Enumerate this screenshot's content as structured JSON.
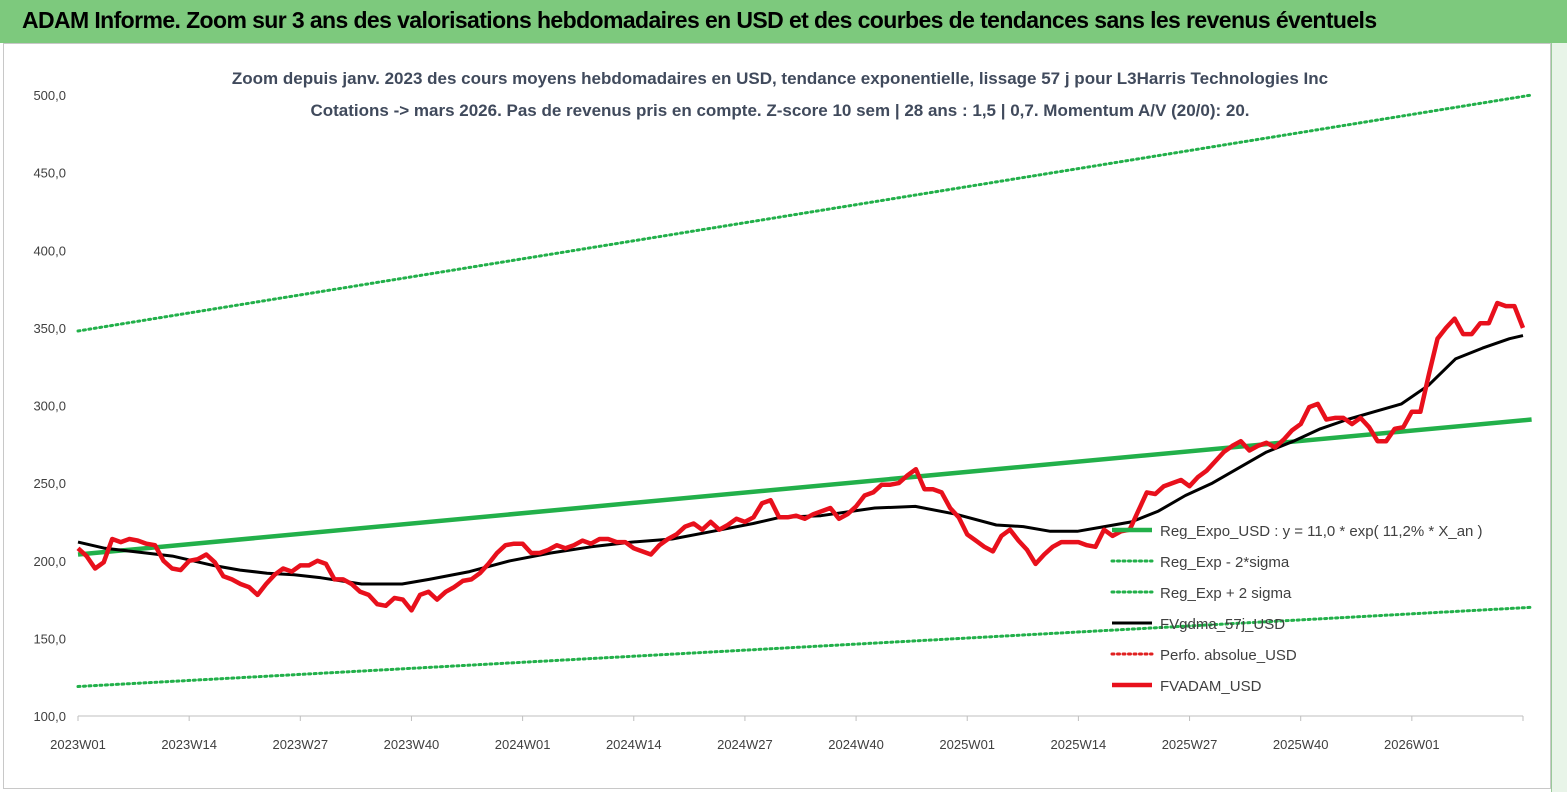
{
  "banner": {
    "title": "ADAM Informe. Zoom sur 3 ans des valorisations hebdomadaires en USD et des courbes de tendances sans les revenus éventuels",
    "color": "#7dc97d"
  },
  "chart_data": {
    "type": "line",
    "title": "Zoom depuis janv. 2023 des cours moyens hebdomadaires en USD, tendance exponentielle, lissage 57 j pour L3Harris Technologies Inc",
    "subtitle": "Cotations -> mars 2026. Pas de revenus pris en compte. Z-score 10 sem | 28 ans : 1,5 | 0,7. Momentum A/V (20/0): 20.",
    "xlabel": "",
    "ylabel": "",
    "ylim": [
      100,
      500
    ],
    "y_ticks": [
      "100,0",
      "150,0",
      "200,0",
      "250,0",
      "300,0",
      "350,0",
      "400,0",
      "450,0",
      "500,0"
    ],
    "x_ticks": [
      "2023W01",
      "2023W14",
      "2023W27",
      "2023W40",
      "2024W01",
      "2024W14",
      "2024W27",
      "2024W40",
      "2025W01",
      "2025W14",
      "2025W27",
      "2025W40",
      "2026W01"
    ],
    "x_weeks_total": 170,
    "legend_position": "bottom-right",
    "grid": false,
    "series": [
      {
        "name": "Reg_Expo_USD : y = 11,0 * exp( 11,2% * X_an )",
        "color": "#22b04a",
        "style": "solid-thick",
        "values": [
          [
            0,
            204
          ],
          [
            170,
            291
          ]
        ]
      },
      {
        "name": "Reg_Exp - 2*sigma",
        "color": "#22b04a",
        "style": "dotted",
        "values": [
          [
            0,
            119
          ],
          [
            170,
            170
          ]
        ]
      },
      {
        "name": "Reg_Exp + 2 sigma",
        "color": "#22b04a",
        "style": "dotted",
        "values": [
          [
            0,
            348
          ],
          [
            170,
            500
          ]
        ]
      },
      {
        "name": "FVgdma_57j_USD",
        "color": "#000000",
        "style": "solid",
        "values": [
          [
            0,
            212
          ],
          [
            4,
            208
          ],
          [
            8,
            206
          ],
          [
            14,
            203
          ],
          [
            20,
            197
          ],
          [
            24,
            194
          ],
          [
            28,
            192
          ],
          [
            32,
            191
          ],
          [
            36,
            189
          ],
          [
            42,
            185
          ],
          [
            48,
            185
          ],
          [
            52,
            188
          ],
          [
            58,
            193
          ],
          [
            64,
            200
          ],
          [
            70,
            205
          ],
          [
            76,
            209
          ],
          [
            82,
            212
          ],
          [
            88,
            214
          ],
          [
            94,
            219
          ],
          [
            100,
            224
          ],
          [
            104,
            228
          ],
          [
            110,
            229
          ],
          [
            118,
            234
          ],
          [
            124,
            235
          ],
          [
            130,
            230
          ],
          [
            136,
            223
          ],
          [
            140,
            222
          ],
          [
            144,
            219
          ],
          [
            148,
            219
          ],
          [
            152,
            222
          ],
          [
            156,
            225
          ],
          [
            160,
            232
          ],
          [
            164,
            242
          ],
          [
            168,
            250
          ],
          [
            172,
            260
          ],
          [
            176,
            270
          ],
          [
            180,
            277
          ],
          [
            184,
            285
          ],
          [
            188,
            291
          ],
          [
            192,
            296
          ],
          [
            196,
            301
          ],
          [
            200,
            313
          ],
          [
            204,
            330
          ],
          [
            208,
            337
          ],
          [
            212,
            343
          ],
          [
            214,
            345
          ]
        ]
      },
      {
        "name": "Perfo. absolue_USD",
        "color": "#e02020",
        "style": "dotted",
        "values": []
      },
      {
        "name": "FVADAM_USD",
        "color": "#e8101c",
        "style": "solid-thick",
        "values": [
          [
            0,
            208
          ],
          [
            1,
            203
          ],
          [
            2,
            195
          ],
          [
            3,
            199
          ],
          [
            4,
            214
          ],
          [
            5,
            212
          ],
          [
            6,
            214
          ],
          [
            7,
            213
          ],
          [
            8,
            211
          ],
          [
            9,
            210
          ],
          [
            10,
            200
          ],
          [
            11,
            195
          ],
          [
            12,
            194
          ],
          [
            13,
            200
          ],
          [
            14,
            201
          ],
          [
            15,
            204
          ],
          [
            16,
            199
          ],
          [
            17,
            190
          ],
          [
            18,
            188
          ],
          [
            19,
            185
          ],
          [
            20,
            183
          ],
          [
            21,
            178
          ],
          [
            22,
            185
          ],
          [
            23,
            191
          ],
          [
            24,
            195
          ],
          [
            25,
            193
          ],
          [
            26,
            197
          ],
          [
            27,
            197
          ],
          [
            28,
            200
          ],
          [
            29,
            198
          ],
          [
            30,
            188
          ],
          [
            31,
            188
          ],
          [
            32,
            185
          ],
          [
            33,
            180
          ],
          [
            34,
            178
          ],
          [
            35,
            172
          ],
          [
            36,
            171
          ],
          [
            37,
            176
          ],
          [
            38,
            175
          ],
          [
            39,
            168
          ],
          [
            40,
            178
          ],
          [
            41,
            180
          ],
          [
            42,
            175
          ],
          [
            43,
            180
          ],
          [
            44,
            183
          ],
          [
            45,
            187
          ],
          [
            46,
            188
          ],
          [
            47,
            192
          ],
          [
            48,
            198
          ],
          [
            49,
            205
          ],
          [
            50,
            210
          ],
          [
            51,
            211
          ],
          [
            52,
            211
          ],
          [
            53,
            205
          ],
          [
            54,
            205
          ],
          [
            55,
            207
          ],
          [
            56,
            210
          ],
          [
            57,
            208
          ],
          [
            58,
            210
          ],
          [
            59,
            213
          ],
          [
            60,
            211
          ],
          [
            61,
            214
          ],
          [
            62,
            214
          ],
          [
            63,
            212
          ],
          [
            64,
            212
          ],
          [
            65,
            208
          ],
          [
            66,
            206
          ],
          [
            67,
            204
          ],
          [
            68,
            210
          ],
          [
            69,
            214
          ],
          [
            70,
            217
          ],
          [
            71,
            222
          ],
          [
            72,
            224
          ],
          [
            73,
            220
          ],
          [
            74,
            225
          ],
          [
            75,
            220
          ],
          [
            76,
            223
          ],
          [
            77,
            227
          ],
          [
            78,
            225
          ],
          [
            79,
            228
          ],
          [
            80,
            237
          ],
          [
            81,
            239
          ],
          [
            82,
            228
          ],
          [
            83,
            228
          ],
          [
            84,
            229
          ],
          [
            85,
            227
          ],
          [
            86,
            230
          ],
          [
            87,
            232
          ],
          [
            88,
            234
          ],
          [
            89,
            227
          ],
          [
            90,
            230
          ],
          [
            91,
            235
          ],
          [
            92,
            242
          ],
          [
            93,
            244
          ],
          [
            94,
            249
          ],
          [
            95,
            249
          ],
          [
            96,
            250
          ],
          [
            97,
            255
          ],
          [
            98,
            259
          ],
          [
            99,
            246
          ],
          [
            100,
            246
          ],
          [
            101,
            244
          ],
          [
            102,
            234
          ],
          [
            103,
            228
          ],
          [
            104,
            217
          ],
          [
            105,
            213
          ],
          [
            106,
            209
          ],
          [
            107,
            206
          ],
          [
            108,
            216
          ],
          [
            109,
            220
          ],
          [
            110,
            213
          ],
          [
            111,
            207
          ],
          [
            112,
            198
          ],
          [
            113,
            204
          ],
          [
            114,
            209
          ],
          [
            115,
            212
          ],
          [
            116,
            212
          ],
          [
            117,
            212
          ],
          [
            118,
            210
          ],
          [
            119,
            209
          ],
          [
            120,
            220
          ],
          [
            121,
            216
          ],
          [
            122,
            219
          ],
          [
            123,
            220
          ],
          [
            124,
            232
          ],
          [
            125,
            244
          ],
          [
            126,
            243
          ],
          [
            127,
            248
          ],
          [
            128,
            250
          ],
          [
            129,
            252
          ],
          [
            130,
            248
          ],
          [
            131,
            254
          ],
          [
            132,
            258
          ],
          [
            133,
            264
          ],
          [
            134,
            270
          ],
          [
            135,
            274
          ],
          [
            136,
            277
          ],
          [
            137,
            271
          ],
          [
            138,
            274
          ],
          [
            139,
            276
          ],
          [
            140,
            273
          ],
          [
            141,
            278
          ],
          [
            142,
            284
          ],
          [
            143,
            288
          ],
          [
            144,
            299
          ],
          [
            145,
            301
          ],
          [
            146,
            291
          ],
          [
            147,
            292
          ],
          [
            148,
            292
          ],
          [
            149,
            288
          ],
          [
            150,
            292
          ],
          [
            151,
            286
          ],
          [
            152,
            277
          ],
          [
            153,
            277
          ],
          [
            154,
            285
          ],
          [
            155,
            286
          ],
          [
            156,
            296
          ],
          [
            157,
            296
          ],
          [
            158,
            320
          ],
          [
            159,
            343
          ],
          [
            160,
            350
          ],
          [
            161,
            356
          ],
          [
            162,
            346
          ],
          [
            163,
            346
          ],
          [
            164,
            353
          ],
          [
            165,
            353
          ],
          [
            166,
            366
          ],
          [
            167,
            364
          ],
          [
            168,
            364
          ],
          [
            169,
            350
          ]
        ]
      }
    ]
  }
}
